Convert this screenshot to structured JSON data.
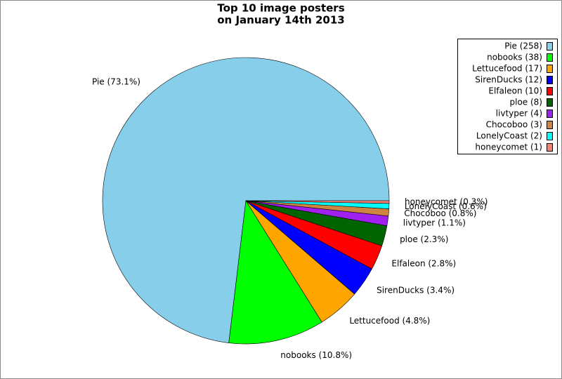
{
  "chart_data": {
    "type": "pie",
    "title": "Top 10 image posters",
    "subtitle": "on January 14th 2013",
    "categories": [
      "Pie (258)",
      "nobooks (38)",
      "Lettucefood (17)",
      "SirenDucks (12)",
      "Elfaleon (10)",
      "ploe (8)",
      "livtyper (4)",
      "Chocoboo (3)",
      "LonelyCoast (2)",
      "honeycomet (1)"
    ],
    "values": [
      73.1,
      10.8,
      4.8,
      3.4,
      2.8,
      2.3,
      1.1,
      0.8,
      0.6,
      0.3
    ],
    "value_labels": [
      "Pie (73.1%)",
      "nobooks (10.8%)",
      "Lettucefood (4.8%)",
      "SirenDucks (3.4%)",
      "Elfaleon (2.8%)",
      "ploe (2.3%)",
      "livtyper (1.1%)",
      "Chocoboo (0.8%)",
      "LonelyCoast (0.6%)",
      "honeycomet (0.3%)"
    ],
    "colors": [
      "#87ceeb",
      "#00ff00",
      "#ffa500",
      "#0000ff",
      "#ff0000",
      "#006400",
      "#a020f0",
      "#cd853f",
      "#00ffff",
      "#fa8072"
    ],
    "legend": "upper right"
  }
}
